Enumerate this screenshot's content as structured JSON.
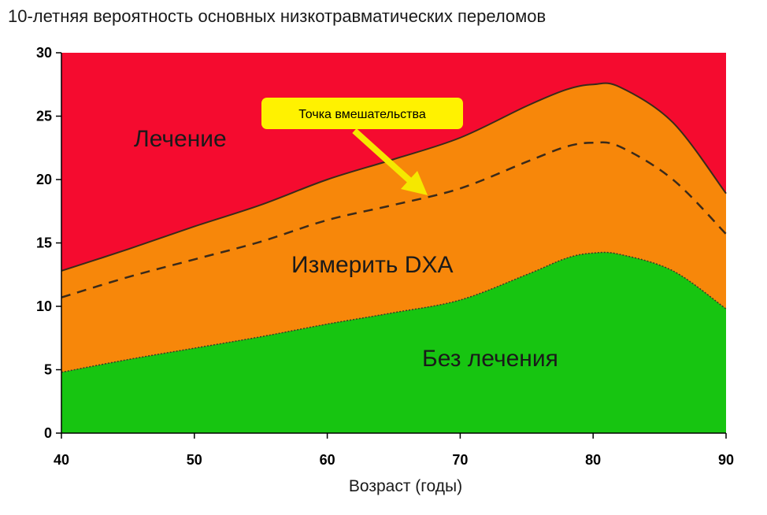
{
  "chart_data": {
    "type": "area",
    "title": "10-летняя вероятность основных низкотравматических переломов",
    "xlabel": "Возраст (годы)",
    "ylabel": "",
    "xlim": [
      40,
      90
    ],
    "ylim": [
      0,
      30
    ],
    "x_ticks": [
      40,
      50,
      60,
      70,
      80,
      90
    ],
    "y_ticks": [
      0,
      5,
      10,
      15,
      20,
      25,
      30
    ],
    "x": [
      40,
      45,
      50,
      55,
      60,
      65,
      70,
      75,
      78,
      80,
      82,
      86,
      90
    ],
    "series": [
      {
        "name": "Без лечения",
        "color": "#17c511",
        "values": [
          4.8,
          5.8,
          6.7,
          7.6,
          8.6,
          9.5,
          10.5,
          12.5,
          13.8,
          14.2,
          14.1,
          12.8,
          9.8
        ]
      },
      {
        "name": "Точка вмешательства",
        "style": "dashed",
        "values": [
          10.7,
          12.3,
          13.7,
          15.1,
          16.8,
          18.0,
          19.3,
          21.4,
          22.6,
          22.9,
          22.6,
          20.0,
          15.7
        ]
      },
      {
        "name": "Измерить DXA",
        "color": "#f7870a",
        "values": [
          12.8,
          14.5,
          16.3,
          18.0,
          20.0,
          21.6,
          23.3,
          25.8,
          27.1,
          27.5,
          27.3,
          24.5,
          18.9
        ]
      },
      {
        "name": "Лечение",
        "color": "#f50b2f",
        "values": [
          30,
          30,
          30,
          30,
          30,
          30,
          30,
          30,
          30,
          30,
          30,
          30,
          30
        ]
      }
    ],
    "region_labels": {
      "treatment": "Лечение",
      "measure": "Измерить DXA",
      "no_treatment": "Без лечения"
    },
    "annotation": {
      "text": "Точка вмешательства",
      "box_color": "#fff200",
      "arrow_color": "#f5e800",
      "points_to_x": 68
    }
  }
}
